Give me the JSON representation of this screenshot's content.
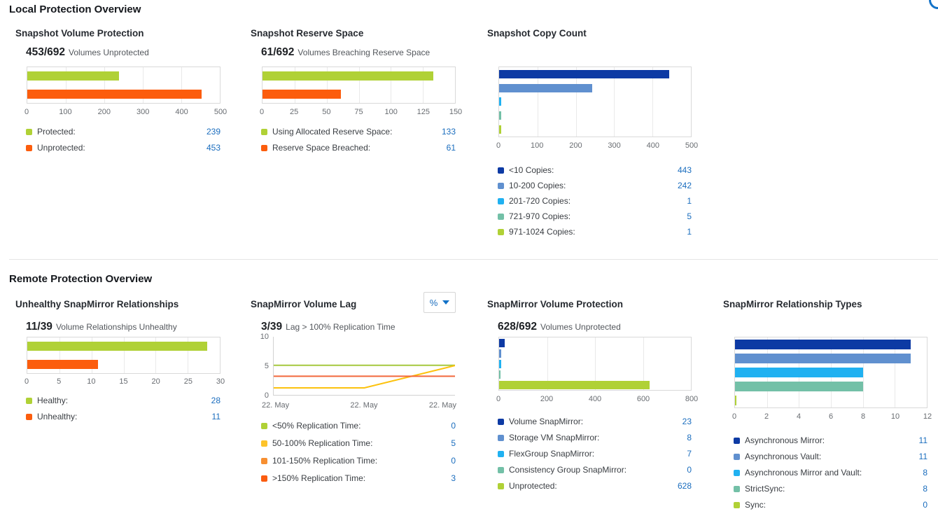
{
  "page": {
    "local_heading": "Local Protection Overview",
    "remote_heading": "Remote Protection Overview"
  },
  "colors": {
    "green": "#b0d136",
    "orange": "#fc5d0d",
    "navy": "#0d3aa4",
    "medium_blue": "#6090cf",
    "cyan": "#20b1f1",
    "teal": "#73c0a7",
    "link_blue": "#1a6dbe"
  },
  "charts": {
    "svp": {
      "title": "Snapshot Volume Protection",
      "headline_value": "453/692",
      "headline_label": "Volumes Unprotected",
      "chart": {
        "type": "bar",
        "max": 500,
        "ticks": [
          "0",
          "100",
          "200",
          "300",
          "400",
          "500"
        ],
        "series": [
          {
            "label": "Protected:",
            "value": 239,
            "color": "#b0d136"
          },
          {
            "label": "Unprotected:",
            "value": 453,
            "color": "#fc5d0d"
          }
        ]
      }
    },
    "srs": {
      "title": "Snapshot Reserve Space",
      "headline_value": "61/692",
      "headline_label": "Volumes Breaching Reserve Space",
      "chart": {
        "type": "bar",
        "max": 150,
        "ticks": [
          "0",
          "25",
          "50",
          "75",
          "100",
          "125",
          "150"
        ],
        "series": [
          {
            "label": "Using Allocated Reserve Space:",
            "value": 133,
            "color": "#b0d136"
          },
          {
            "label": "Reserve Space Breached:",
            "value": 61,
            "color": "#fc5d0d"
          }
        ]
      }
    },
    "scc": {
      "title": "Snapshot Copy Count",
      "chart": {
        "type": "bar",
        "max": 500,
        "ticks": [
          "0",
          "100",
          "200",
          "300",
          "400",
          "500"
        ],
        "series": [
          {
            "label": "<10 Copies:",
            "value": 443,
            "color": "#0d3aa4"
          },
          {
            "label": "10-200 Copies:",
            "value": 242,
            "color": "#6090cf"
          },
          {
            "label": "201-720 Copies:",
            "value": 1,
            "color": "#20b1f1"
          },
          {
            "label": "721-970 Copies:",
            "value": 5,
            "color": "#73c0a7"
          },
          {
            "label": "971-1024 Copies:",
            "value": 1,
            "color": "#b0d136"
          }
        ]
      }
    },
    "usr": {
      "title": "Unhealthy SnapMirror Relationships",
      "headline_value": "11/39",
      "headline_label": "Volume Relationships Unhealthy",
      "chart": {
        "type": "bar",
        "max": 30,
        "ticks": [
          "0",
          "5",
          "10",
          "15",
          "20",
          "25",
          "30"
        ],
        "series": [
          {
            "label": "Healthy:",
            "value": 28,
            "color": "#b0d136"
          },
          {
            "label": "Unhealthy:",
            "value": 11,
            "color": "#fc5d0d"
          }
        ]
      }
    },
    "svl": {
      "title": "SnapMirror Volume Lag",
      "unit_selector": {
        "label": "%",
        "icon": "chevron-down-icon"
      },
      "headline_value": "3/39",
      "headline_label": "Lag > 100% Replication Time",
      "chart": {
        "type": "line",
        "x_max": 2,
        "y_max": 10,
        "x_ticks": [
          "22. May",
          "22. May",
          "22. May"
        ],
        "y_ticks": [
          "10",
          "5",
          "0"
        ],
        "series": [
          {
            "label": "<50% Replication Time:",
            "value": 0,
            "color": "#b0d136",
            "line_color": "#a6c83e",
            "points": [
              [
                0,
                5.1
              ],
              [
                2,
                5.1
              ]
            ]
          },
          {
            "label": "50-100% Replication Time:",
            "value": 5,
            "color": "#fdc32a",
            "line_color": "#fcc20e",
            "points": [
              [
                0,
                1.2
              ],
              [
                1,
                1.2
              ],
              [
                2,
                5.05
              ]
            ]
          },
          {
            "label": "101-150% Replication Time:",
            "value": 0,
            "color": "#f78f31",
            "line_color": "#f78f31",
            "points": []
          },
          {
            "label": ">150% Replication Time:",
            "value": 3,
            "color": "#fb5c10",
            "line_color": "#f2683c",
            "points": [
              [
                0,
                3.2
              ],
              [
                2,
                3.2
              ]
            ]
          }
        ]
      }
    },
    "smvp": {
      "title": "SnapMirror Volume Protection",
      "headline_value": "628/692",
      "headline_label": "Volumes Unprotected",
      "chart": {
        "type": "bar",
        "max": 800,
        "ticks": [
          "0",
          "200",
          "400",
          "600",
          "800"
        ],
        "series": [
          {
            "label": "Volume SnapMirror:",
            "value": 23,
            "color": "#0d3aa4"
          },
          {
            "label": "Storage VM SnapMirror:",
            "value": 8,
            "color": "#6090cf"
          },
          {
            "label": "FlexGroup SnapMirror:",
            "value": 7,
            "color": "#20b1f1"
          },
          {
            "label": "Consistency Group SnapMirror:",
            "value": 0,
            "color": "#73c0a7"
          },
          {
            "label": "Unprotected:",
            "value": 628,
            "color": "#b0d136"
          }
        ]
      }
    },
    "smrt": {
      "title": "SnapMirror Relationship Types",
      "chart": {
        "type": "bar",
        "max": 12,
        "ticks": [
          "0",
          "2",
          "4",
          "6",
          "8",
          "10",
          "12"
        ],
        "series": [
          {
            "label": "Asynchronous Mirror:",
            "value": 11,
            "color": "#0d3aa4"
          },
          {
            "label": "Asynchronous Vault:",
            "value": 11,
            "color": "#6090cf"
          },
          {
            "label": "Asynchronous Mirror and Vault:",
            "value": 8,
            "color": "#20b1f1"
          },
          {
            "label": "StrictSync:",
            "value": 8,
            "color": "#73c0a7"
          },
          {
            "label": "Sync:",
            "value": 0,
            "color": "#b0d136"
          }
        ]
      }
    }
  }
}
